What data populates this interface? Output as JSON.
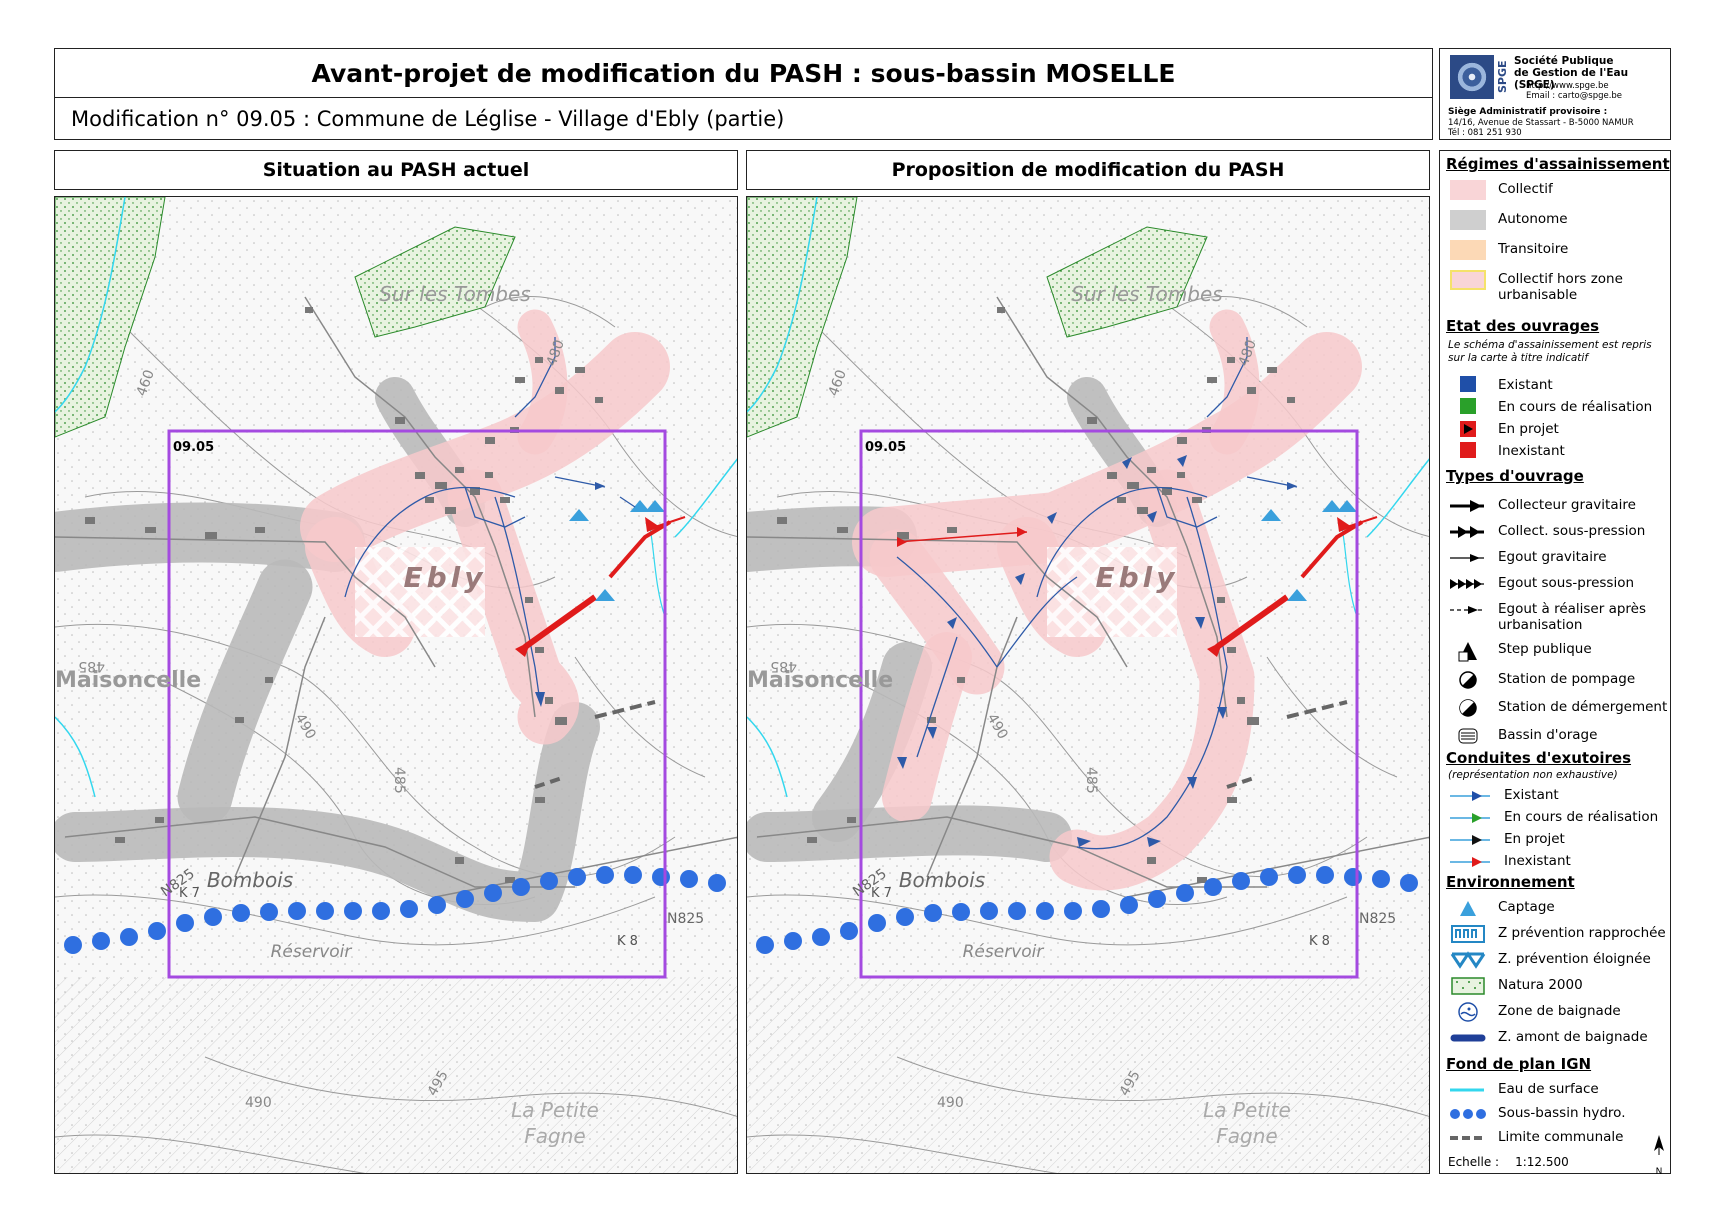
{
  "header": {
    "title": "Avant-projet de modification du PASH : sous-bassin MOSELLE",
    "subtitle": "Modification n° 09.05 : Commune de Léglise - Village d'Ebly (partie)"
  },
  "organization": {
    "logo_text": "SPGE",
    "name_line1": "Société Publique",
    "name_line2": "de Gestion de l'Eau (SPGE)",
    "website": "http://www.spge.be",
    "email": "Email : carto@spge.be",
    "address_label": "Siège Administratif provisoire :",
    "address": "14/16, Avenue de Stassart - B-5000 NAMUR",
    "phone": "Tél : 081 251 930"
  },
  "maps": {
    "left_title": "Situation au PASH actuel",
    "right_title": "Proposition de modification du PASH",
    "zone_label": "09.05",
    "place_labels": {
      "tombes": "Sur les Tombes",
      "ebly": "Ebly",
      "maisoncelle": "Maisoncelle",
      "bombois": "Bombois",
      "reservoir": "Réservoir",
      "petite_fagne_1": "La Petite",
      "petite_fagne_2": "Fagne",
      "road_n825": "N825",
      "road_n825b": "N825",
      "k8": "K 8",
      "k7": "K 7"
    },
    "contours": [
      "460",
      "480",
      "485",
      "490",
      "485",
      "495",
      "490"
    ]
  },
  "legend": {
    "regimes": {
      "title": "Régimes d'assainissement",
      "items": [
        {
          "label": "Collectif",
          "color": "#f9d5d7"
        },
        {
          "label": "Autonome",
          "color": "#cfcfcf"
        },
        {
          "label": "Transitoire",
          "color": "#fcd9b6"
        },
        {
          "label": "Collectif hors zone urbanisable",
          "color": "#f9d5d7"
        }
      ]
    },
    "etat": {
      "title": "Etat des ouvrages",
      "note": "Le schéma d'assainissement est repris sur la carte à titre indicatif",
      "items": [
        {
          "label": "Existant",
          "color": "#1f4fa8"
        },
        {
          "label": "En cours de réalisation",
          "color": "#2aa02a"
        },
        {
          "label": "En projet",
          "color": "#e01b1b"
        },
        {
          "label": "Inexistant",
          "color": "#e01b1b"
        }
      ]
    },
    "types": {
      "title": "Types d'ouvrage",
      "items": [
        {
          "label": "Collecteur gravitaire"
        },
        {
          "label": "Collect. sous-pression"
        },
        {
          "label": "Egout gravitaire"
        },
        {
          "label": "Egout sous-pression"
        },
        {
          "label": "Egout à réaliser après urbanisation"
        },
        {
          "label": "Step publique"
        },
        {
          "label": "Station de pompage"
        },
        {
          "label": "Station de démergement"
        },
        {
          "label": "Bassin d'orage"
        }
      ]
    },
    "exutoires": {
      "title": "Conduites d'exutoires",
      "note": "(représentation non exhaustive)",
      "items": [
        {
          "label": "Existant",
          "color": "#1f4fa8"
        },
        {
          "label": "En cours de réalisation",
          "color": "#2aa02a"
        },
        {
          "label": "En projet",
          "color": "#111111"
        },
        {
          "label": "Inexistant",
          "color": "#e01b1b"
        }
      ]
    },
    "environnement": {
      "title": "Environnement",
      "items": [
        {
          "label": "Captage"
        },
        {
          "label": "Z prévention rapprochée"
        },
        {
          "label": "Z. prévention éloignée"
        },
        {
          "label": "Natura 2000"
        },
        {
          "label": "Zone de baignade"
        },
        {
          "label": "Z. amont de baignade"
        }
      ]
    },
    "fond": {
      "title": "Fond de plan IGN",
      "items": [
        {
          "label": "Eau de surface"
        },
        {
          "label": "Sous-bassin hydro."
        },
        {
          "label": "Limite communale"
        }
      ]
    },
    "scale_label": "Echelle :",
    "scale_value": "1:12.500",
    "north": "N"
  }
}
